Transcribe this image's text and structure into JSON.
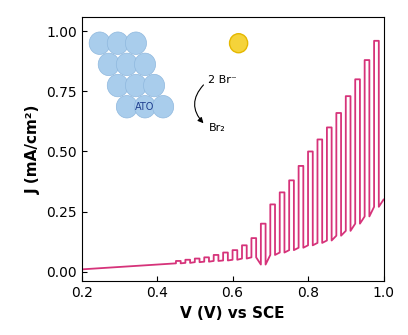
{
  "chart_data": {
    "type": "line",
    "x_label": "V (V) vs SCE",
    "y_label": "J (mA/cm²)",
    "annotations": [
      "ATO",
      "2 Br⁻",
      "Br₂"
    ],
    "xlim": [
      0.2,
      1.0
    ],
    "xticks": [
      0.2,
      0.4,
      0.6,
      0.8,
      1.0
    ],
    "ylim": [
      -0.04,
      1.06
    ],
    "yticks": [
      {
        "value": 0,
        "label": "0.00"
      },
      {
        "value": 0.25,
        "label": "0.25"
      },
      {
        "value": 0.5,
        "label": "0.50"
      },
      {
        "value": 0.75,
        "label": "0.75"
      },
      {
        "value": 1,
        "label": "1.00"
      }
    ],
    "x": [
      0.2,
      0.25,
      0.3,
      0.35,
      0.4,
      0.45,
      0.45,
      0.4625,
      0.4625,
      0.475,
      0.475,
      0.4875,
      0.4875,
      0.5,
      0.5,
      0.5125,
      0.5125,
      0.525,
      0.525,
      0.5375,
      0.5375,
      0.55,
      0.55,
      0.5625,
      0.5625,
      0.575,
      0.575,
      0.5875,
      0.5875,
      0.6,
      0.6,
      0.6125,
      0.6125,
      0.625,
      0.625,
      0.6375,
      0.6375,
      0.65,
      0.65,
      0.6625,
      0.6625,
      0.675,
      0.675,
      0.6875,
      0.6875,
      0.7,
      0.7,
      0.7125,
      0.7125,
      0.725,
      0.725,
      0.7375,
      0.7375,
      0.75,
      0.75,
      0.7625,
      0.7625,
      0.775,
      0.775,
      0.7875,
      0.7875,
      0.8,
      0.8,
      0.8125,
      0.8125,
      0.825,
      0.825,
      0.8375,
      0.8375,
      0.85,
      0.85,
      0.8625,
      0.8625,
      0.875,
      0.875,
      0.8875,
      0.8875,
      0.9,
      0.9,
      0.9125,
      0.9125,
      0.925,
      0.925,
      0.9375,
      0.9375,
      0.95,
      0.95,
      0.9625,
      0.9625,
      0.975,
      0.975,
      0.9875,
      0.9875,
      1.0
    ],
    "values": [
      0.01,
      0.015,
      0.02,
      0.025,
      0.03,
      0.035,
      0.045,
      0.045,
      0.035,
      0.037,
      0.05,
      0.05,
      0.037,
      0.04,
      0.055,
      0.055,
      0.04,
      0.042,
      0.06,
      0.06,
      0.042,
      0.045,
      0.07,
      0.07,
      0.045,
      0.047,
      0.08,
      0.08,
      0.047,
      0.05,
      0.09,
      0.09,
      0.05,
      0.055,
      0.11,
      0.11,
      0.055,
      0.06,
      0.14,
      0.14,
      0.06,
      0.03,
      0.2,
      0.2,
      0.03,
      0.07,
      0.28,
      0.28,
      0.07,
      0.08,
      0.33,
      0.33,
      0.08,
      0.09,
      0.38,
      0.38,
      0.09,
      0.1,
      0.44,
      0.44,
      0.1,
      0.11,
      0.5,
      0.5,
      0.11,
      0.12,
      0.55,
      0.55,
      0.12,
      0.13,
      0.6,
      0.6,
      0.13,
      0.15,
      0.66,
      0.66,
      0.15,
      0.17,
      0.73,
      0.73,
      0.17,
      0.2,
      0.8,
      0.8,
      0.2,
      0.23,
      0.88,
      0.88,
      0.23,
      0.27,
      0.96,
      0.96,
      0.27,
      0.3
    ],
    "color": "#d6337a"
  }
}
